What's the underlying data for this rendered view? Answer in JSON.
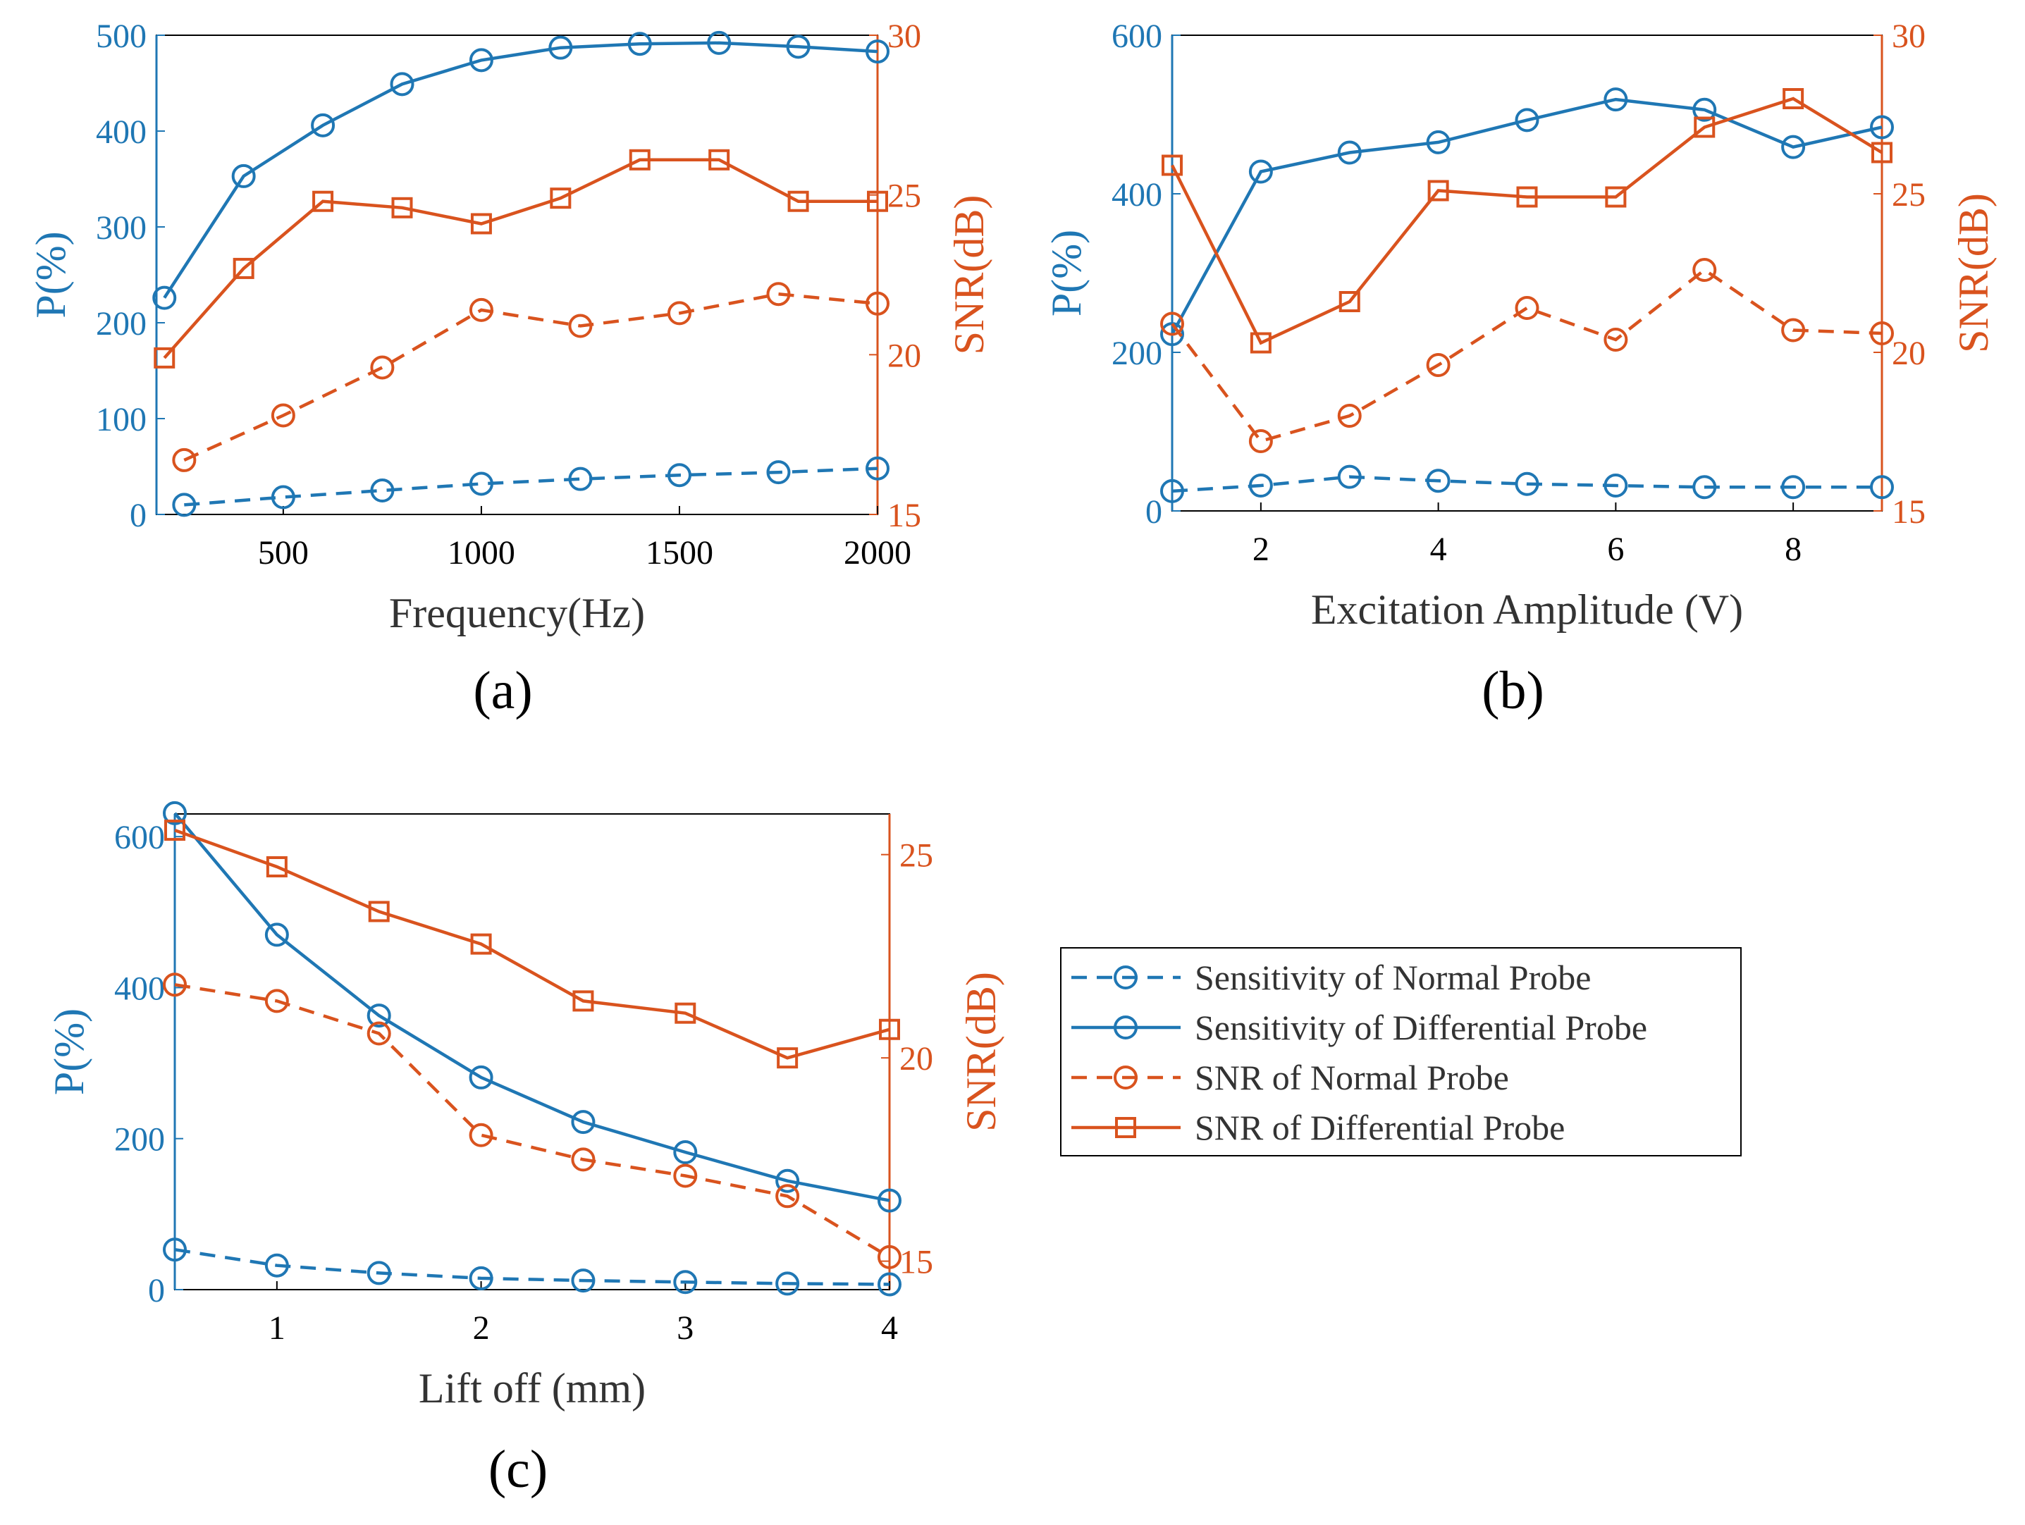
{
  "colors": {
    "blue": "#1f77b4",
    "orange": "#d9531e"
  },
  "legend": {
    "entries": [
      {
        "label": "Sensitivity of Normal Probe",
        "color": "blue",
        "dash": true,
        "marker": "circle"
      },
      {
        "label": "Sensitivity of Differential Probe",
        "color": "blue",
        "dash": false,
        "marker": "circle"
      },
      {
        "label": "SNR of Normal Probe",
        "color": "orange",
        "dash": true,
        "marker": "circle"
      },
      {
        "label": "SNR of Differential Probe",
        "color": "orange",
        "dash": false,
        "marker": "square"
      }
    ]
  },
  "chart_data": [
    {
      "id": "a",
      "panel_label": "(a)",
      "type": "line",
      "xlabel": "Frequency(Hz)",
      "ylabel_left": "P(%)",
      "ylabel_right": "SNR(dB)",
      "xlim": [
        180,
        2000
      ],
      "xticks": [
        500,
        1000,
        1500,
        2000
      ],
      "ylim_left": [
        0,
        500
      ],
      "yticks_left": [
        0,
        100,
        200,
        300,
        400,
        500
      ],
      "ylim_right": [
        15,
        30
      ],
      "yticks_right": [
        15,
        20,
        25,
        30
      ],
      "series": [
        {
          "name": "Sensitivity of Normal Probe",
          "axis": "left",
          "x": [
            250,
            500,
            750,
            1000,
            1250,
            1500,
            1750,
            2000
          ],
          "values": [
            10,
            18,
            25,
            32,
            37,
            41,
            44,
            48
          ]
        },
        {
          "name": "Sensitivity of Differential Probe",
          "axis": "left",
          "x": [
            200,
            400,
            600,
            800,
            1000,
            1200,
            1400,
            1600,
            1800,
            2000
          ],
          "values": [
            226,
            353,
            406,
            449,
            474,
            487,
            491,
            492,
            488,
            483
          ]
        },
        {
          "name": "SNR of Normal Probe",
          "axis": "right",
          "x": [
            250,
            500,
            750,
            1000,
            1250,
            1500,
            1750,
            2000
          ],
          "values": [
            16.7,
            18.1,
            19.6,
            21.4,
            20.9,
            21.3,
            21.9,
            21.6
          ]
        },
        {
          "name": "SNR of Differential Probe",
          "axis": "right",
          "x": [
            200,
            400,
            600,
            800,
            1000,
            1200,
            1400,
            1600,
            1800,
            2000
          ],
          "values": [
            19.9,
            22.7,
            24.8,
            24.6,
            24.1,
            24.9,
            26.1,
            26.1,
            24.8,
            24.8
          ]
        }
      ]
    },
    {
      "id": "b",
      "panel_label": "(b)",
      "type": "line",
      "xlabel": "Excitation Amplitude (V)",
      "ylabel_left": "P(%)",
      "ylabel_right": "SNR(dB)",
      "xlim": [
        1,
        9
      ],
      "xticks": [
        2,
        4,
        6,
        8
      ],
      "ylim_left": [
        0,
        600
      ],
      "yticks_left": [
        0,
        200,
        400,
        600
      ],
      "ylim_right": [
        15,
        30
      ],
      "yticks_right": [
        15,
        20,
        25,
        30
      ],
      "series": [
        {
          "name": "Sensitivity of Normal Probe",
          "axis": "left",
          "x": [
            1,
            2,
            3,
            4,
            5,
            6,
            7,
            8,
            9
          ],
          "values": [
            25,
            32,
            43,
            38,
            34,
            32,
            30,
            30,
            30
          ]
        },
        {
          "name": "Sensitivity of Differential Probe",
          "axis": "left",
          "x": [
            1,
            2,
            3,
            4,
            5,
            6,
            7,
            8,
            9
          ],
          "values": [
            223,
            428,
            452,
            465,
            493,
            519,
            506,
            459,
            484
          ]
        },
        {
          "name": "SNR of Normal Probe",
          "axis": "right",
          "x": [
            1,
            2,
            3,
            4,
            5,
            6,
            7,
            8,
            9
          ],
          "values": [
            20.9,
            17.2,
            18.0,
            19.6,
            21.4,
            20.4,
            22.6,
            20.7,
            20.6
          ]
        },
        {
          "name": "SNR of Differential Probe",
          "axis": "right",
          "x": [
            1,
            2,
            3,
            4,
            5,
            6,
            7,
            8,
            9
          ],
          "values": [
            25.9,
            20.3,
            21.6,
            25.1,
            24.9,
            24.9,
            27.1,
            28.0,
            26.3
          ]
        }
      ]
    },
    {
      "id": "c",
      "panel_label": "(c)",
      "type": "line",
      "xlabel": "Lift off (mm)",
      "ylabel_left": "P(%)",
      "ylabel_right": "SNR(dB)",
      "xlim": [
        0.5,
        4
      ],
      "xticks": [
        1,
        2,
        3,
        4
      ],
      "ylim_left": [
        0,
        630
      ],
      "yticks_left": [
        0,
        200,
        400,
        600
      ],
      "ylim_right": [
        14.3,
        26
      ],
      "yticks_right": [
        15,
        20,
        25
      ],
      "series": [
        {
          "name": "Sensitivity of Normal Probe",
          "axis": "left",
          "x": [
            0.5,
            1,
            1.5,
            2,
            2.5,
            3,
            3.5,
            4
          ],
          "values": [
            53,
            32,
            22,
            15,
            12,
            10,
            8,
            7
          ]
        },
        {
          "name": "Sensitivity of Differential Probe",
          "axis": "left",
          "x": [
            0.5,
            1,
            1.5,
            2,
            2.5,
            3,
            3.5,
            4
          ],
          "values": [
            631,
            470,
            363,
            281,
            222,
            182,
            144,
            118
          ]
        },
        {
          "name": "SNR of Normal Probe",
          "axis": "right",
          "x": [
            0.5,
            1,
            1.5,
            2,
            2.5,
            3,
            3.5,
            4
          ],
          "values": [
            21.8,
            21.4,
            20.6,
            18.1,
            17.5,
            17.1,
            16.6,
            15.1
          ]
        },
        {
          "name": "SNR of Differential Probe",
          "axis": "right",
          "x": [
            0.5,
            1,
            1.5,
            2,
            2.5,
            3,
            3.5,
            4
          ],
          "values": [
            25.6,
            24.7,
            23.6,
            22.8,
            21.4,
            21.1,
            20.0,
            20.7
          ]
        }
      ]
    }
  ]
}
